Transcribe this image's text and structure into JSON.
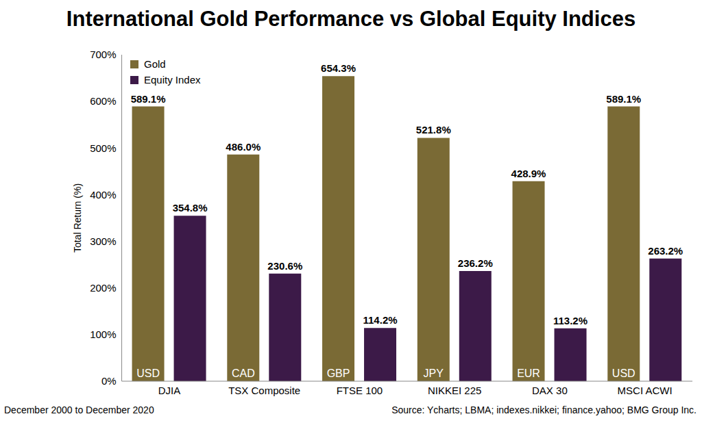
{
  "chart_data": {
    "type": "bar",
    "title": "International Gold Performance vs Global Equity Indices",
    "y_label": "Total Return (%)",
    "categories": [
      "DJIA",
      "TSX Composite",
      "FTSE 100",
      "NIKKEI 225",
      "DAX 30",
      "MSCI ACWI"
    ],
    "series": [
      {
        "name": "Gold",
        "color": "#7a6a35",
        "values": [
          589.1,
          486.0,
          654.3,
          521.8,
          428.9,
          589.1
        ],
        "value_labels": [
          "589.1%",
          "486.0%",
          "654.3%",
          "521.8%",
          "428.9%",
          "589.1%"
        ],
        "bar_labels": [
          "USD",
          "CAD",
          "GBP",
          "JPY",
          "EUR",
          "USD"
        ]
      },
      {
        "name": "Equity Index",
        "color": "#3c1a48",
        "values": [
          354.8,
          230.6,
          114.2,
          236.2,
          113.2,
          263.2
        ],
        "value_labels": [
          "354.8%",
          "230.6%",
          "114.2%",
          "236.2%",
          "113.2%",
          "263.2%"
        ]
      }
    ],
    "ylim": [
      0,
      700
    ],
    "yticks": [
      {
        "value": 0,
        "label": "0%"
      },
      {
        "value": 100,
        "label": "100%"
      },
      {
        "value": 200,
        "label": "200%"
      },
      {
        "value": 300,
        "label": "300%"
      },
      {
        "value": 400,
        "label": "400%"
      },
      {
        "value": 500,
        "label": "500%"
      },
      {
        "value": 600,
        "label": "600%"
      },
      {
        "value": 700,
        "label": "700%"
      }
    ],
    "data_labels": true,
    "legend": "upper left",
    "grid": false,
    "footnote": "December 2000 to December 2020",
    "source": "Source: Ycharts; LBMA; indexes.nikkei; finance.yahoo; BMG Group Inc."
  }
}
